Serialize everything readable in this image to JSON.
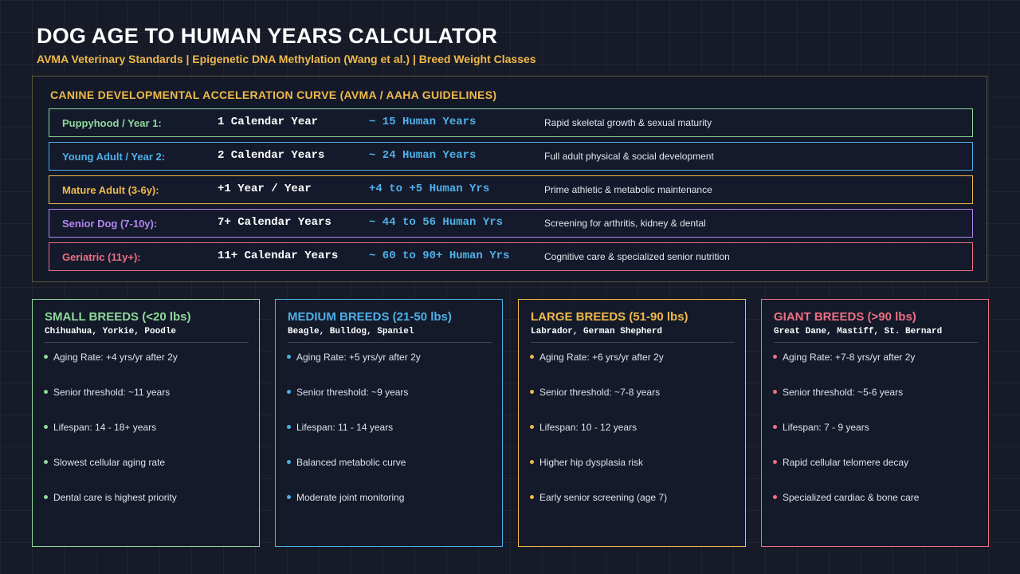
{
  "header": {
    "title": "DOG AGE TO HUMAN YEARS CALCULATOR",
    "subtitle": "AVMA Veterinary Standards | Epigenetic DNA Methylation (Wang et al.) | Breed Weight Classes"
  },
  "curve": {
    "heading": "CANINE DEVELOPMENTAL ACCELERATION CURVE (AVMA / AAHA GUIDELINES)",
    "stages": [
      {
        "name": "Puppyhood / Year 1:",
        "calendar": "1 Calendar Year",
        "human": "~ 15 Human Years",
        "desc": "Rapid skeletal growth & sexual maturity",
        "color": "#8fd89a"
      },
      {
        "name": "Young Adult / Year 2:",
        "calendar": "2 Calendar Years",
        "human": "~ 24 Human Years",
        "desc": "Full adult physical & social development",
        "color": "#4fb0e8"
      },
      {
        "name": "Mature Adult (3-6y):",
        "calendar": "+1 Year / Year",
        "human": "+4 to +5 Human Yrs",
        "desc": "Prime athletic & metabolic maintenance",
        "color": "#f0b94a"
      },
      {
        "name": "Senior Dog (7-10y):",
        "calendar": "7+ Calendar Years",
        "human": "~ 44 to 56 Human Yrs",
        "desc": "Screening for arthritis, kidney & dental",
        "color": "#b486f0"
      },
      {
        "name": "Geriatric (11y+):",
        "calendar": "11+ Calendar Years",
        "human": "~ 60 to 90+ Human Yrs",
        "desc": "Cognitive care & specialized senior nutrition",
        "color": "#ee6f84"
      }
    ]
  },
  "breeds": [
    {
      "title": "SMALL BREEDS (<20 lbs)",
      "examples": "Chihuahua, Yorkie, Poodle",
      "color": "#8fd89a",
      "facts": [
        "Aging Rate: +4 yrs/yr after 2y",
        "Senior threshold: ~11 years",
        "Lifespan: 14 - 18+ years",
        "Slowest cellular aging rate",
        "Dental care is highest priority"
      ]
    },
    {
      "title": "MEDIUM BREEDS (21-50 lbs)",
      "examples": "Beagle, Bulldog, Spaniel",
      "color": "#4fb0e8",
      "facts": [
        "Aging Rate: +5 yrs/yr after 2y",
        "Senior threshold: ~9 years",
        "Lifespan: 11 - 14 years",
        "Balanced metabolic curve",
        "Moderate joint monitoring"
      ]
    },
    {
      "title": "LARGE BREEDS (51-90 lbs)",
      "examples": "Labrador, German Shepherd",
      "color": "#f0b94a",
      "facts": [
        "Aging Rate: +6 yrs/yr after 2y",
        "Senior threshold: ~7-8 years",
        "Lifespan: 10 - 12 years",
        "Higher hip dysplasia risk",
        "Early senior screening (age 7)"
      ]
    },
    {
      "title": "GIANT BREEDS (>90 lbs)",
      "examples": "Great Dane, Mastiff, St. Bernard",
      "color": "#ee6f84",
      "facts": [
        "Aging Rate: +7-8 yrs/yr after 2y",
        "Senior threshold: ~5-6 years",
        "Lifespan: 7 - 9 years",
        "Rapid cellular telomere decay",
        "Specialized cardiac & bone care"
      ]
    }
  ]
}
